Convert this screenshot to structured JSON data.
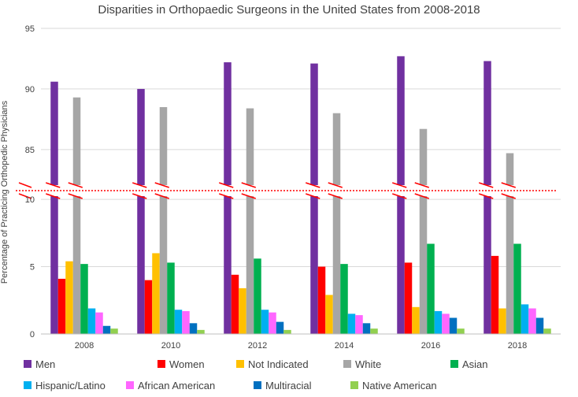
{
  "chart_data": {
    "type": "bar",
    "title": "Disparities in Orthopaedic Surgeons in the United States from 2008-2018",
    "ylabel": "Percentage of Practicing Orthopedic Physicians",
    "xlabel": "",
    "categories": [
      "2008",
      "2010",
      "2012",
      "2014",
      "2016",
      "2018"
    ],
    "axis_break": true,
    "ylim_lower": [
      0,
      11
    ],
    "ylim_upper": [
      82,
      95
    ],
    "yticks_lower": [
      "0",
      "5",
      "10"
    ],
    "yticks_upper": [
      "85",
      "90",
      "95"
    ],
    "grid": true,
    "legend_position": "bottom",
    "series": [
      {
        "name": "Men",
        "color": "#7030A0",
        "values": [
          90.6,
          90.0,
          92.2,
          92.1,
          92.7,
          92.3
        ]
      },
      {
        "name": "Women",
        "color": "#FF0000",
        "values": [
          4.1,
          4.0,
          4.4,
          5.0,
          5.3,
          5.8
        ]
      },
      {
        "name": "Not Indicated",
        "color": "#FFC000",
        "values": [
          5.4,
          6.0,
          3.4,
          2.9,
          2.0,
          1.9
        ]
      },
      {
        "name": "White",
        "color": "#A6A6A6",
        "values": [
          89.3,
          88.5,
          88.4,
          88.0,
          86.7,
          84.7
        ]
      },
      {
        "name": "Asian",
        "color": "#00B050",
        "values": [
          5.2,
          5.3,
          5.6,
          5.2,
          6.7,
          6.7
        ]
      },
      {
        "name": "Hispanic/Latino",
        "color": "#00B0F0",
        "values": [
          1.9,
          1.8,
          1.8,
          1.5,
          1.7,
          2.2
        ]
      },
      {
        "name": "African American",
        "color": "#FF66FF",
        "values": [
          1.6,
          1.7,
          1.6,
          1.4,
          1.5,
          1.9
        ]
      },
      {
        "name": "Multiracial",
        "color": "#0070C0",
        "values": [
          0.6,
          0.8,
          0.9,
          0.8,
          1.2,
          1.2
        ]
      },
      {
        "name": "Native American",
        "color": "#92D050",
        "values": [
          0.4,
          0.3,
          0.3,
          0.4,
          0.4,
          0.4
        ]
      }
    ],
    "break_line_color": "#FF0000"
  }
}
